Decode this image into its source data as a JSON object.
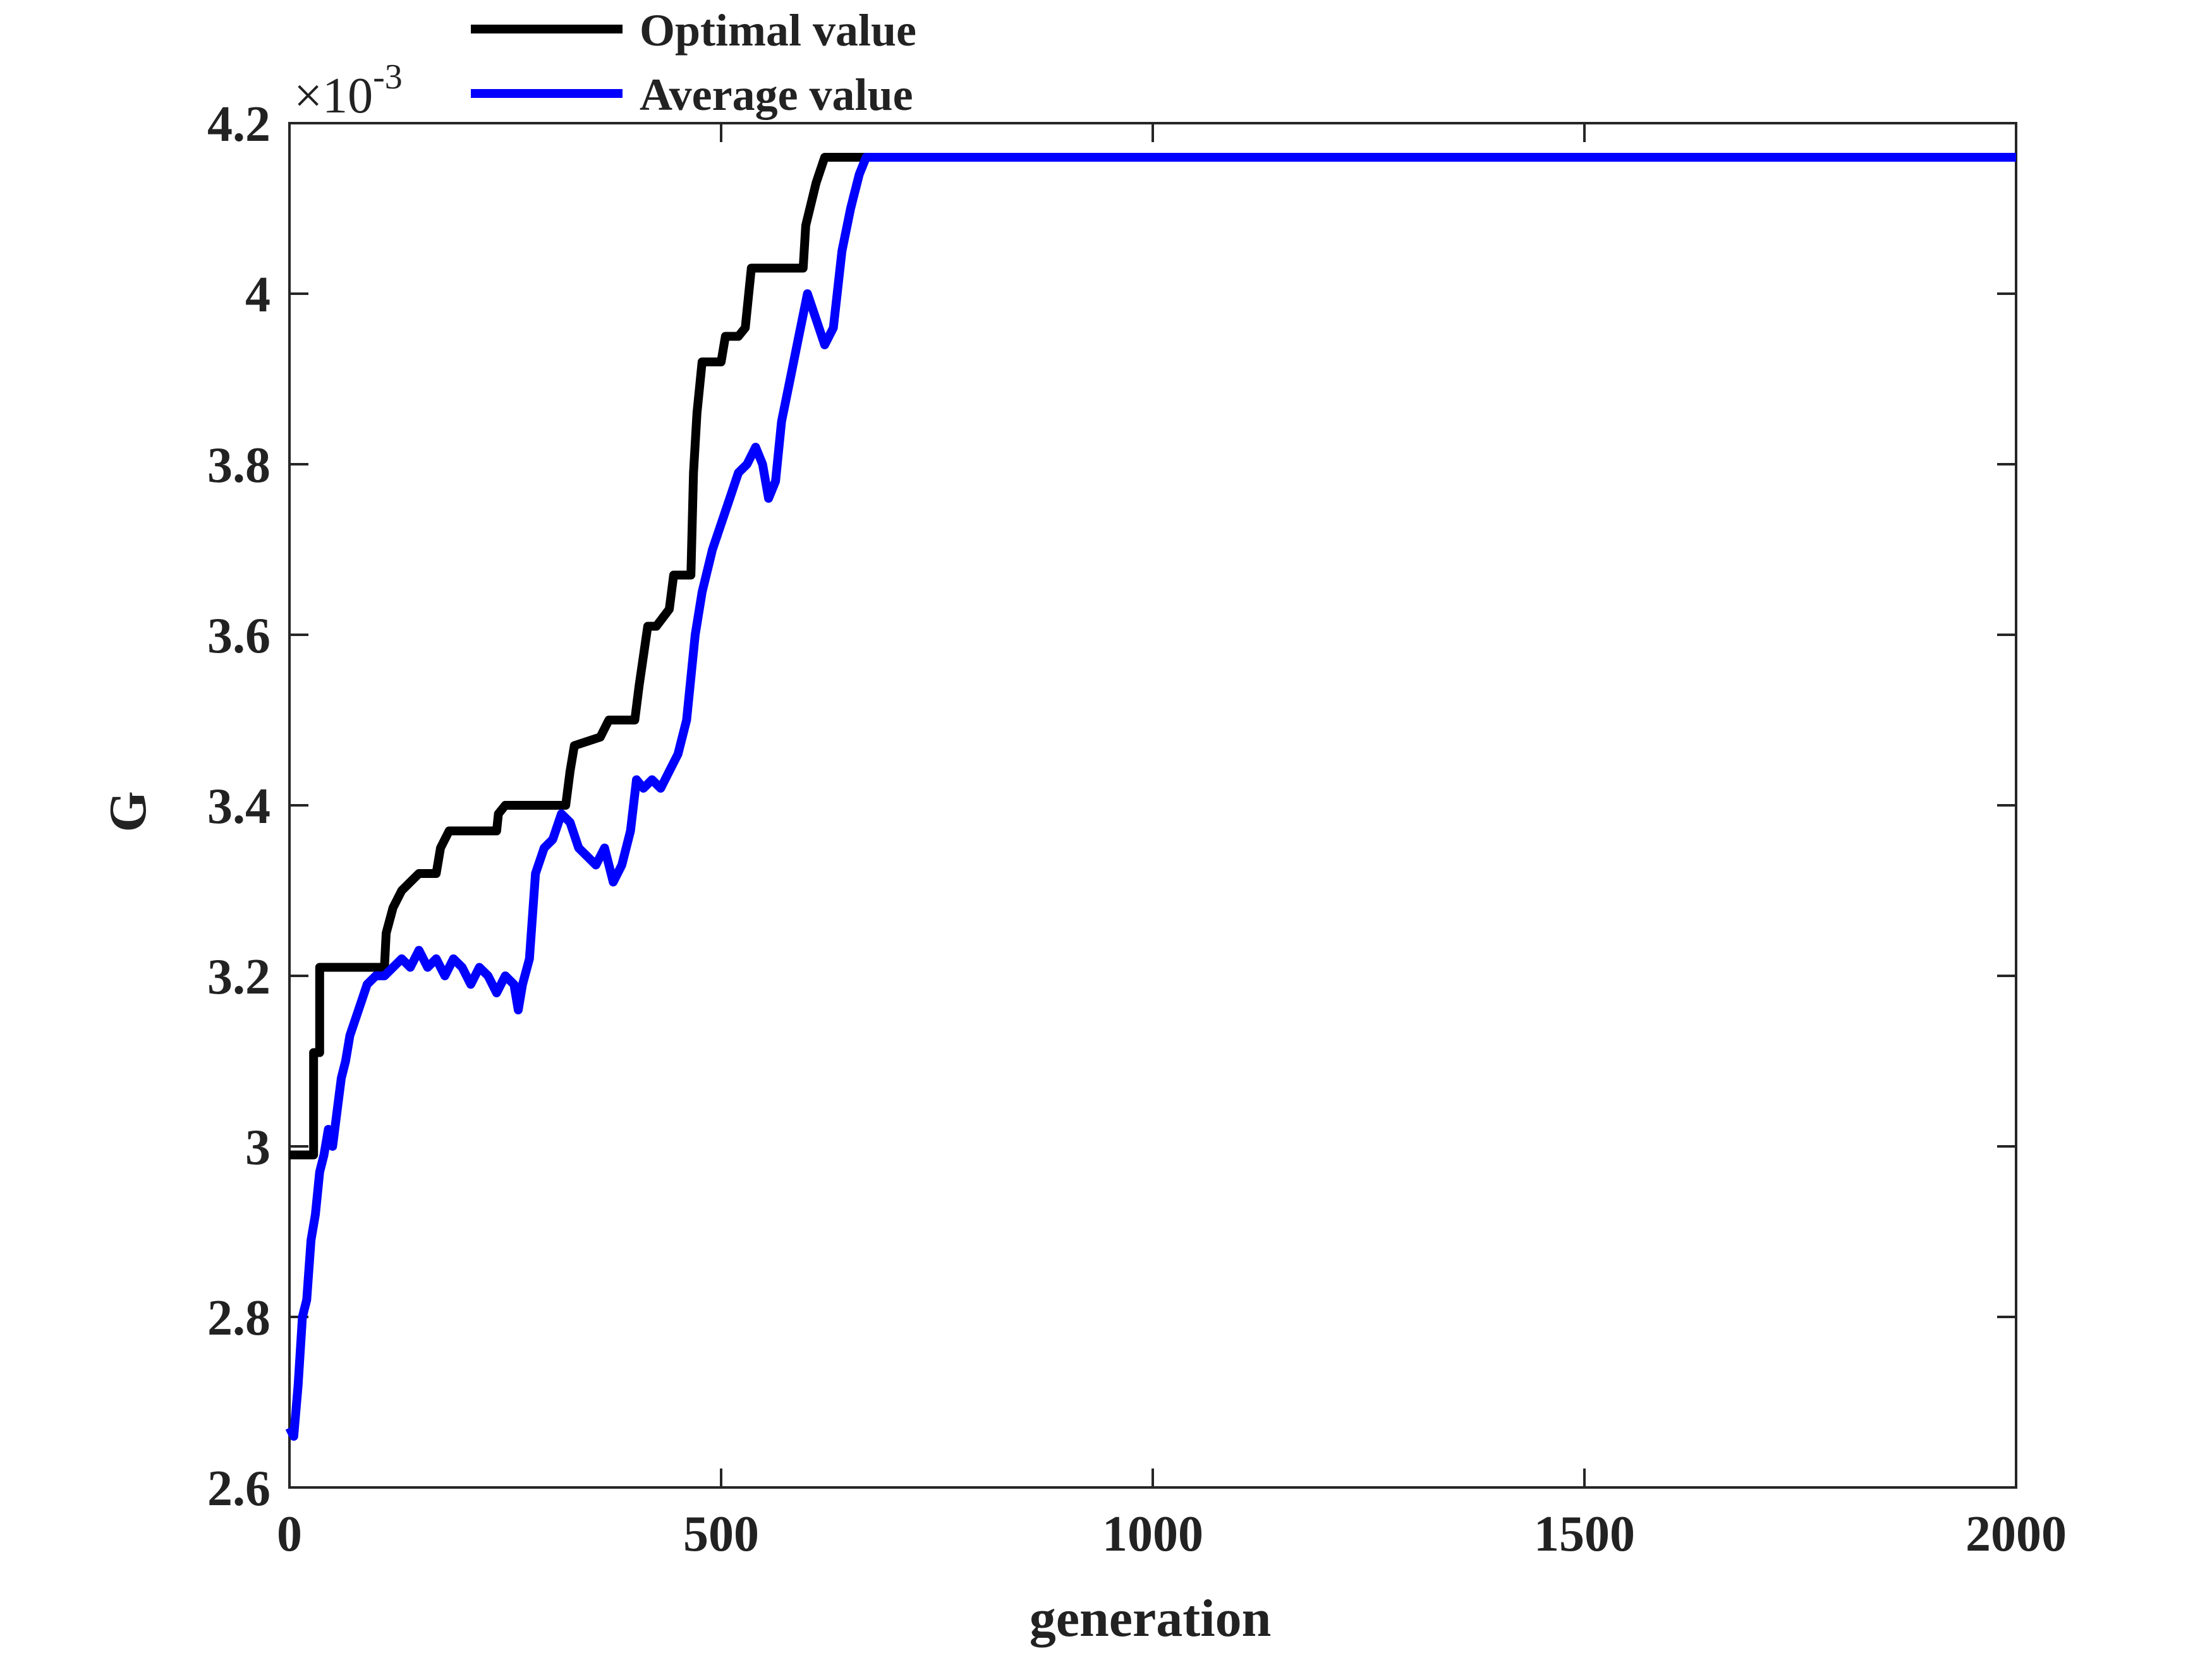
{
  "chart_data": {
    "type": "line",
    "title": "",
    "xlabel": "generation",
    "ylabel": "G",
    "y_scale_factor_label": "×10",
    "y_scale_factor_exponent": "-3",
    "xlim": [
      0,
      2000
    ],
    "ylim": [
      2.6,
      4.2
    ],
    "x_ticks": [
      "0",
      "500",
      "1000",
      "1500",
      "2000"
    ],
    "x_tick_values": [
      0,
      500,
      1000,
      1500,
      2000
    ],
    "y_ticks": [
      "2.6",
      "2.8",
      "3",
      "3.2",
      "3.4",
      "3.6",
      "3.8",
      "4",
      "4.2"
    ],
    "y_tick_values": [
      2.6,
      2.8,
      3.0,
      3.2,
      3.4,
      3.6,
      3.8,
      4.0,
      4.2
    ],
    "grid": false,
    "legend_position": "top",
    "series": [
      {
        "name": "Optimal value",
        "color": "#000000",
        "points": [
          [
            0,
            2.99
          ],
          [
            28,
            2.99
          ],
          [
            28,
            3.11
          ],
          [
            35,
            3.11
          ],
          [
            35,
            3.21
          ],
          [
            110,
            3.21
          ],
          [
            112,
            3.25
          ],
          [
            120,
            3.28
          ],
          [
            130,
            3.3
          ],
          [
            140,
            3.31
          ],
          [
            150,
            3.32
          ],
          [
            170,
            3.32
          ],
          [
            175,
            3.35
          ],
          [
            185,
            3.37
          ],
          [
            240,
            3.37
          ],
          [
            242,
            3.39
          ],
          [
            250,
            3.4
          ],
          [
            320,
            3.4
          ],
          [
            325,
            3.44
          ],
          [
            330,
            3.47
          ],
          [
            360,
            3.48
          ],
          [
            370,
            3.5
          ],
          [
            400,
            3.5
          ],
          [
            405,
            3.54
          ],
          [
            415,
            3.61
          ],
          [
            425,
            3.61
          ],
          [
            440,
            3.63
          ],
          [
            445,
            3.67
          ],
          [
            465,
            3.67
          ],
          [
            468,
            3.79
          ],
          [
            472,
            3.86
          ],
          [
            478,
            3.92
          ],
          [
            500,
            3.92
          ],
          [
            505,
            3.95
          ],
          [
            520,
            3.95
          ],
          [
            528,
            3.96
          ],
          [
            535,
            4.03
          ],
          [
            595,
            4.03
          ],
          [
            598,
            4.08
          ],
          [
            610,
            4.13
          ],
          [
            620,
            4.16
          ],
          [
            2000,
            4.16
          ]
        ]
      },
      {
        "name": "Average value",
        "color": "#0000ff",
        "points": [
          [
            0,
            2.67
          ],
          [
            5,
            2.66
          ],
          [
            10,
            2.72
          ],
          [
            15,
            2.8
          ],
          [
            20,
            2.82
          ],
          [
            25,
            2.89
          ],
          [
            30,
            2.92
          ],
          [
            35,
            2.97
          ],
          [
            40,
            2.99
          ],
          [
            45,
            3.02
          ],
          [
            50,
            3.0
          ],
          [
            55,
            3.04
          ],
          [
            60,
            3.08
          ],
          [
            65,
            3.1
          ],
          [
            70,
            3.13
          ],
          [
            80,
            3.16
          ],
          [
            90,
            3.19
          ],
          [
            100,
            3.2
          ],
          [
            110,
            3.2
          ],
          [
            120,
            3.21
          ],
          [
            130,
            3.22
          ],
          [
            140,
            3.21
          ],
          [
            150,
            3.23
          ],
          [
            160,
            3.21
          ],
          [
            170,
            3.22
          ],
          [
            180,
            3.2
          ],
          [
            190,
            3.22
          ],
          [
            200,
            3.21
          ],
          [
            210,
            3.19
          ],
          [
            220,
            3.21
          ],
          [
            230,
            3.2
          ],
          [
            240,
            3.18
          ],
          [
            250,
            3.2
          ],
          [
            260,
            3.19
          ],
          [
            265,
            3.16
          ],
          [
            270,
            3.19
          ],
          [
            278,
            3.22
          ],
          [
            285,
            3.32
          ],
          [
            295,
            3.35
          ],
          [
            305,
            3.36
          ],
          [
            315,
            3.39
          ],
          [
            325,
            3.38
          ],
          [
            335,
            3.35
          ],
          [
            345,
            3.34
          ],
          [
            355,
            3.33
          ],
          [
            365,
            3.35
          ],
          [
            375,
            3.31
          ],
          [
            385,
            3.33
          ],
          [
            395,
            3.37
          ],
          [
            402,
            3.43
          ],
          [
            410,
            3.42
          ],
          [
            420,
            3.43
          ],
          [
            430,
            3.42
          ],
          [
            440,
            3.44
          ],
          [
            450,
            3.46
          ],
          [
            460,
            3.5
          ],
          [
            465,
            3.55
          ],
          [
            470,
            3.6
          ],
          [
            478,
            3.65
          ],
          [
            490,
            3.7
          ],
          [
            500,
            3.73
          ],
          [
            510,
            3.76
          ],
          [
            520,
            3.79
          ],
          [
            530,
            3.8
          ],
          [
            540,
            3.82
          ],
          [
            548,
            3.8
          ],
          [
            555,
            3.76
          ],
          [
            563,
            3.78
          ],
          [
            570,
            3.85
          ],
          [
            580,
            3.9
          ],
          [
            590,
            3.95
          ],
          [
            600,
            4.0
          ],
          [
            610,
            3.97
          ],
          [
            620,
            3.94
          ],
          [
            630,
            3.96
          ],
          [
            640,
            4.05
          ],
          [
            650,
            4.1
          ],
          [
            660,
            4.14
          ],
          [
            668,
            4.16
          ],
          [
            2000,
            4.16
          ]
        ]
      }
    ]
  }
}
